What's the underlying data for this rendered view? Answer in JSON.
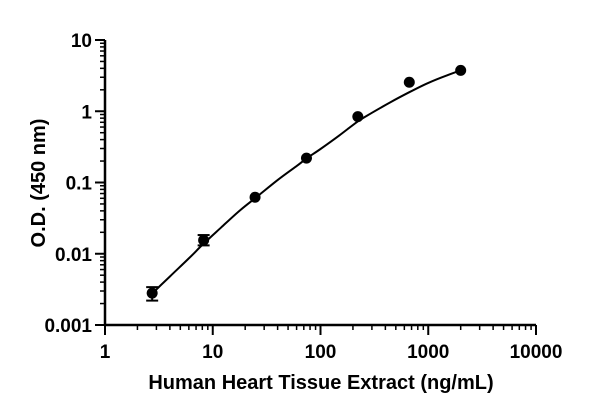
{
  "chart_data": {
    "type": "scatter",
    "title": "",
    "xlabel": "Human Heart Tissue Extract (ng/mL)",
    "ylabel": "O.D. (450 nm)",
    "xscale": "log",
    "yscale": "log",
    "xlim": [
      1,
      10000
    ],
    "ylim": [
      0.001,
      10
    ],
    "x_ticks": [
      "1",
      "10",
      "100",
      "1000",
      "10000"
    ],
    "y_ticks": [
      "0.001",
      "0.01",
      "0.1",
      "1",
      "10"
    ],
    "grid": false,
    "legend": "none",
    "series": [
      {
        "points": [
          {
            "x": 2.74,
            "y": 0.0028,
            "err_low": 0.0022,
            "err_high": 0.0034
          },
          {
            "x": 8.23,
            "y": 0.0155,
            "err_low": 0.0131,
            "err_high": 0.0183
          },
          {
            "x": 24.7,
            "y": 0.062
          },
          {
            "x": 74.1,
            "y": 0.22
          },
          {
            "x": 222,
            "y": 0.84
          },
          {
            "x": 667,
            "y": 2.55
          },
          {
            "x": 2000,
            "y": 3.75
          }
        ]
      }
    ],
    "fit_curve": {
      "type": "four-parameter logistic",
      "curve_x": [
        2.7,
        4,
        6,
        8,
        12,
        18,
        25,
        40,
        60,
        75,
        100,
        150,
        222,
        300,
        450,
        667,
        1000,
        1500,
        2000
      ],
      "curve_y": [
        0.0027,
        0.0048,
        0.0086,
        0.0133,
        0.0235,
        0.041,
        0.061,
        0.108,
        0.17,
        0.22,
        0.295,
        0.46,
        0.72,
        0.95,
        1.35,
        1.85,
        2.5,
        3.2,
        3.75
      ]
    },
    "colors": {
      "marker": "#000000",
      "line": "#000000"
    }
  }
}
